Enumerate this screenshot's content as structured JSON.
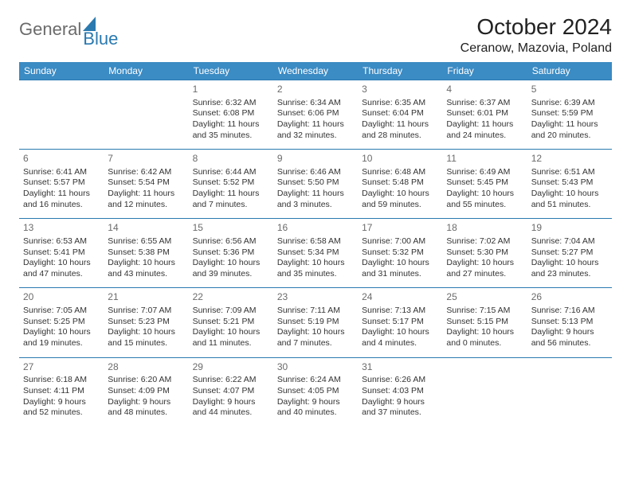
{
  "logo": {
    "text1": "General",
    "text2": "Blue"
  },
  "header": {
    "title": "October 2024",
    "location": "Ceranow, Mazovia, Poland"
  },
  "colors": {
    "header_bg": "#3b8bc4",
    "header_fg": "#ffffff",
    "rule": "#2a7ab0",
    "daynum": "#6b6b6b",
    "text": "#333333"
  },
  "days": [
    "Sunday",
    "Monday",
    "Tuesday",
    "Wednesday",
    "Thursday",
    "Friday",
    "Saturday"
  ],
  "weeks": [
    [
      null,
      null,
      {
        "n": "1",
        "sr": "Sunrise: 6:32 AM",
        "ss": "Sunset: 6:08 PM",
        "d1": "Daylight: 11 hours",
        "d2": "and 35 minutes."
      },
      {
        "n": "2",
        "sr": "Sunrise: 6:34 AM",
        "ss": "Sunset: 6:06 PM",
        "d1": "Daylight: 11 hours",
        "d2": "and 32 minutes."
      },
      {
        "n": "3",
        "sr": "Sunrise: 6:35 AM",
        "ss": "Sunset: 6:04 PM",
        "d1": "Daylight: 11 hours",
        "d2": "and 28 minutes."
      },
      {
        "n": "4",
        "sr": "Sunrise: 6:37 AM",
        "ss": "Sunset: 6:01 PM",
        "d1": "Daylight: 11 hours",
        "d2": "and 24 minutes."
      },
      {
        "n": "5",
        "sr": "Sunrise: 6:39 AM",
        "ss": "Sunset: 5:59 PM",
        "d1": "Daylight: 11 hours",
        "d2": "and 20 minutes."
      }
    ],
    [
      {
        "n": "6",
        "sr": "Sunrise: 6:41 AM",
        "ss": "Sunset: 5:57 PM",
        "d1": "Daylight: 11 hours",
        "d2": "and 16 minutes."
      },
      {
        "n": "7",
        "sr": "Sunrise: 6:42 AM",
        "ss": "Sunset: 5:54 PM",
        "d1": "Daylight: 11 hours",
        "d2": "and 12 minutes."
      },
      {
        "n": "8",
        "sr": "Sunrise: 6:44 AM",
        "ss": "Sunset: 5:52 PM",
        "d1": "Daylight: 11 hours",
        "d2": "and 7 minutes."
      },
      {
        "n": "9",
        "sr": "Sunrise: 6:46 AM",
        "ss": "Sunset: 5:50 PM",
        "d1": "Daylight: 11 hours",
        "d2": "and 3 minutes."
      },
      {
        "n": "10",
        "sr": "Sunrise: 6:48 AM",
        "ss": "Sunset: 5:48 PM",
        "d1": "Daylight: 10 hours",
        "d2": "and 59 minutes."
      },
      {
        "n": "11",
        "sr": "Sunrise: 6:49 AM",
        "ss": "Sunset: 5:45 PM",
        "d1": "Daylight: 10 hours",
        "d2": "and 55 minutes."
      },
      {
        "n": "12",
        "sr": "Sunrise: 6:51 AM",
        "ss": "Sunset: 5:43 PM",
        "d1": "Daylight: 10 hours",
        "d2": "and 51 minutes."
      }
    ],
    [
      {
        "n": "13",
        "sr": "Sunrise: 6:53 AM",
        "ss": "Sunset: 5:41 PM",
        "d1": "Daylight: 10 hours",
        "d2": "and 47 minutes."
      },
      {
        "n": "14",
        "sr": "Sunrise: 6:55 AM",
        "ss": "Sunset: 5:38 PM",
        "d1": "Daylight: 10 hours",
        "d2": "and 43 minutes."
      },
      {
        "n": "15",
        "sr": "Sunrise: 6:56 AM",
        "ss": "Sunset: 5:36 PM",
        "d1": "Daylight: 10 hours",
        "d2": "and 39 minutes."
      },
      {
        "n": "16",
        "sr": "Sunrise: 6:58 AM",
        "ss": "Sunset: 5:34 PM",
        "d1": "Daylight: 10 hours",
        "d2": "and 35 minutes."
      },
      {
        "n": "17",
        "sr": "Sunrise: 7:00 AM",
        "ss": "Sunset: 5:32 PM",
        "d1": "Daylight: 10 hours",
        "d2": "and 31 minutes."
      },
      {
        "n": "18",
        "sr": "Sunrise: 7:02 AM",
        "ss": "Sunset: 5:30 PM",
        "d1": "Daylight: 10 hours",
        "d2": "and 27 minutes."
      },
      {
        "n": "19",
        "sr": "Sunrise: 7:04 AM",
        "ss": "Sunset: 5:27 PM",
        "d1": "Daylight: 10 hours",
        "d2": "and 23 minutes."
      }
    ],
    [
      {
        "n": "20",
        "sr": "Sunrise: 7:05 AM",
        "ss": "Sunset: 5:25 PM",
        "d1": "Daylight: 10 hours",
        "d2": "and 19 minutes."
      },
      {
        "n": "21",
        "sr": "Sunrise: 7:07 AM",
        "ss": "Sunset: 5:23 PM",
        "d1": "Daylight: 10 hours",
        "d2": "and 15 minutes."
      },
      {
        "n": "22",
        "sr": "Sunrise: 7:09 AM",
        "ss": "Sunset: 5:21 PM",
        "d1": "Daylight: 10 hours",
        "d2": "and 11 minutes."
      },
      {
        "n": "23",
        "sr": "Sunrise: 7:11 AM",
        "ss": "Sunset: 5:19 PM",
        "d1": "Daylight: 10 hours",
        "d2": "and 7 minutes."
      },
      {
        "n": "24",
        "sr": "Sunrise: 7:13 AM",
        "ss": "Sunset: 5:17 PM",
        "d1": "Daylight: 10 hours",
        "d2": "and 4 minutes."
      },
      {
        "n": "25",
        "sr": "Sunrise: 7:15 AM",
        "ss": "Sunset: 5:15 PM",
        "d1": "Daylight: 10 hours",
        "d2": "and 0 minutes."
      },
      {
        "n": "26",
        "sr": "Sunrise: 7:16 AM",
        "ss": "Sunset: 5:13 PM",
        "d1": "Daylight: 9 hours",
        "d2": "and 56 minutes."
      }
    ],
    [
      {
        "n": "27",
        "sr": "Sunrise: 6:18 AM",
        "ss": "Sunset: 4:11 PM",
        "d1": "Daylight: 9 hours",
        "d2": "and 52 minutes."
      },
      {
        "n": "28",
        "sr": "Sunrise: 6:20 AM",
        "ss": "Sunset: 4:09 PM",
        "d1": "Daylight: 9 hours",
        "d2": "and 48 minutes."
      },
      {
        "n": "29",
        "sr": "Sunrise: 6:22 AM",
        "ss": "Sunset: 4:07 PM",
        "d1": "Daylight: 9 hours",
        "d2": "and 44 minutes."
      },
      {
        "n": "30",
        "sr": "Sunrise: 6:24 AM",
        "ss": "Sunset: 4:05 PM",
        "d1": "Daylight: 9 hours",
        "d2": "and 40 minutes."
      },
      {
        "n": "31",
        "sr": "Sunrise: 6:26 AM",
        "ss": "Sunset: 4:03 PM",
        "d1": "Daylight: 9 hours",
        "d2": "and 37 minutes."
      },
      null,
      null
    ]
  ]
}
